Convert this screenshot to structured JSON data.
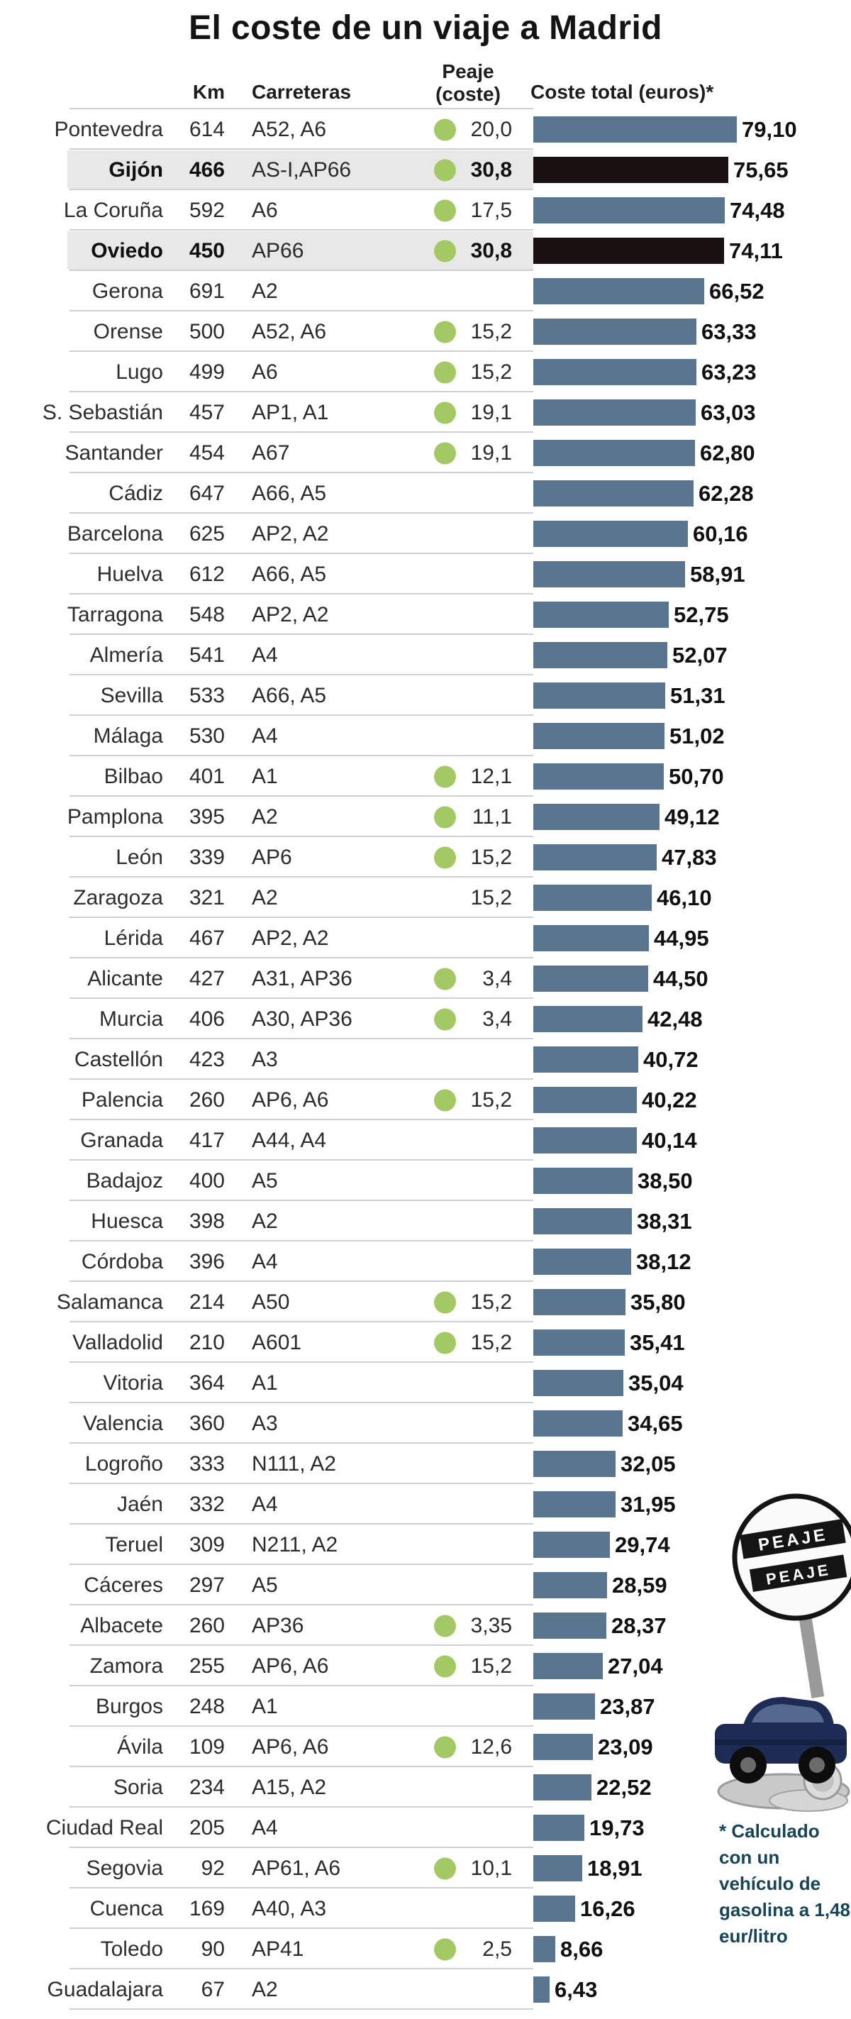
{
  "title": "El coste de un viaje a Madrid",
  "table": {
    "headers": {
      "km": "Km",
      "roads": "Carreteras",
      "toll_line1": "Peaje",
      "toll_line2": "(coste)",
      "total": "Coste total (euros)*"
    }
  },
  "footnote": "* Calculado con un vehículo de gasolina a 1,48 eur/litro",
  "illustration": {
    "sign_label": "PEAJE"
  },
  "colors": {
    "bar": "#5a7590",
    "bar_highlight": "#181110",
    "toll_dot": "#a3c964",
    "highlight_row_bg": "#e8e8e8",
    "separator": "#d0d0d0",
    "footnote_text": "#16455a"
  },
  "chart_data": {
    "type": "bar",
    "orientation": "horizontal",
    "title": "El coste de un viaje a Madrid",
    "value_label": "Coste total (euros)",
    "xlim": [
      0,
      80
    ],
    "rows": [
      {
        "city": "Pontevedra",
        "km": 614,
        "roads": "A52, A6",
        "toll": "20,0",
        "toll_dot": true,
        "total": "79,10",
        "total_value": 79.1,
        "highlight": false
      },
      {
        "city": "Gijón",
        "km": 466,
        "roads": "AS-I,AP66",
        "toll": "30,8",
        "toll_dot": true,
        "total": "75,65",
        "total_value": 75.65,
        "highlight": true
      },
      {
        "city": "La Coruña",
        "km": 592,
        "roads": "A6",
        "toll": "17,5",
        "toll_dot": true,
        "total": "74,48",
        "total_value": 74.48,
        "highlight": false
      },
      {
        "city": "Oviedo",
        "km": 450,
        "roads": "AP66",
        "toll": "30,8",
        "toll_dot": true,
        "total": "74,11",
        "total_value": 74.11,
        "highlight": true
      },
      {
        "city": "Gerona",
        "km": 691,
        "roads": "A2",
        "toll": "",
        "toll_dot": false,
        "total": "66,52",
        "total_value": 66.52,
        "highlight": false
      },
      {
        "city": "Orense",
        "km": 500,
        "roads": "A52, A6",
        "toll": "15,2",
        "toll_dot": true,
        "total": "63,33",
        "total_value": 63.33,
        "highlight": false
      },
      {
        "city": "Lugo",
        "km": 499,
        "roads": "A6",
        "toll": "15,2",
        "toll_dot": true,
        "total": "63,23",
        "total_value": 63.23,
        "highlight": false
      },
      {
        "city": "S. Sebastián",
        "km": 457,
        "roads": "AP1, A1",
        "toll": "19,1",
        "toll_dot": true,
        "total": "63,03",
        "total_value": 63.03,
        "highlight": false
      },
      {
        "city": "Santander",
        "km": 454,
        "roads": "A67",
        "toll": "19,1",
        "toll_dot": true,
        "total": "62,80",
        "total_value": 62.8,
        "highlight": false
      },
      {
        "city": "Cádiz",
        "km": 647,
        "roads": "A66, A5",
        "toll": "",
        "toll_dot": false,
        "total": "62,28",
        "total_value": 62.28,
        "highlight": false
      },
      {
        "city": "Barcelona",
        "km": 625,
        "roads": "AP2, A2",
        "toll": "",
        "toll_dot": false,
        "total": "60,16",
        "total_value": 60.16,
        "highlight": false
      },
      {
        "city": "Huelva",
        "km": 612,
        "roads": "A66, A5",
        "toll": "",
        "toll_dot": false,
        "total": "58,91",
        "total_value": 58.91,
        "highlight": false
      },
      {
        "city": "Tarragona",
        "km": 548,
        "roads": "AP2, A2",
        "toll": "",
        "toll_dot": false,
        "total": "52,75",
        "total_value": 52.75,
        "highlight": false
      },
      {
        "city": "Almería",
        "km": 541,
        "roads": "A4",
        "toll": "",
        "toll_dot": false,
        "total": "52,07",
        "total_value": 52.07,
        "highlight": false
      },
      {
        "city": "Sevilla",
        "km": 533,
        "roads": "A66, A5",
        "toll": "",
        "toll_dot": false,
        "total": "51,31",
        "total_value": 51.31,
        "highlight": false
      },
      {
        "city": "Málaga",
        "km": 530,
        "roads": "A4",
        "toll": "",
        "toll_dot": false,
        "total": "51,02",
        "total_value": 51.02,
        "highlight": false
      },
      {
        "city": "Bilbao",
        "km": 401,
        "roads": "A1",
        "toll": "12,1",
        "toll_dot": true,
        "total": "50,70",
        "total_value": 50.7,
        "highlight": false
      },
      {
        "city": "Pamplona",
        "km": 395,
        "roads": "A2",
        "toll": "11,1",
        "toll_dot": true,
        "total": "49,12",
        "total_value": 49.12,
        "highlight": false
      },
      {
        "city": "León",
        "km": 339,
        "roads": "AP6",
        "toll": "15,2",
        "toll_dot": true,
        "total": "47,83",
        "total_value": 47.83,
        "highlight": false
      },
      {
        "city": "Zaragoza",
        "km": 321,
        "roads": "A2",
        "toll": "15,2",
        "toll_dot": false,
        "total": "46,10",
        "total_value": 46.1,
        "highlight": false
      },
      {
        "city": "Lérida",
        "km": 467,
        "roads": "AP2, A2",
        "toll": "",
        "toll_dot": false,
        "total": "44,95",
        "total_value": 44.95,
        "highlight": false
      },
      {
        "city": "Alicante",
        "km": 427,
        "roads": "A31, AP36",
        "toll": "3,4",
        "toll_dot": true,
        "total": "44,50",
        "total_value": 44.5,
        "highlight": false
      },
      {
        "city": "Murcia",
        "km": 406,
        "roads": "A30, AP36",
        "toll": "3,4",
        "toll_dot": true,
        "total": "42,48",
        "total_value": 42.48,
        "highlight": false
      },
      {
        "city": "Castellón",
        "km": 423,
        "roads": "A3",
        "toll": "",
        "toll_dot": false,
        "total": "40,72",
        "total_value": 40.72,
        "highlight": false
      },
      {
        "city": "Palencia",
        "km": 260,
        "roads": "AP6, A6",
        "toll": "15,2",
        "toll_dot": true,
        "total": "40,22",
        "total_value": 40.22,
        "highlight": false
      },
      {
        "city": "Granada",
        "km": 417,
        "roads": "A44, A4",
        "toll": "",
        "toll_dot": false,
        "total": "40,14",
        "total_value": 40.14,
        "highlight": false
      },
      {
        "city": "Badajoz",
        "km": 400,
        "roads": "A5",
        "toll": "",
        "toll_dot": false,
        "total": "38,50",
        "total_value": 38.5,
        "highlight": false
      },
      {
        "city": "Huesca",
        "km": 398,
        "roads": "A2",
        "toll": "",
        "toll_dot": false,
        "total": "38,31",
        "total_value": 38.31,
        "highlight": false
      },
      {
        "city": "Córdoba",
        "km": 396,
        "roads": "A4",
        "toll": "",
        "toll_dot": false,
        "total": "38,12",
        "total_value": 38.12,
        "highlight": false
      },
      {
        "city": "Salamanca",
        "km": 214,
        "roads": "A50",
        "toll": "15,2",
        "toll_dot": true,
        "total": "35,80",
        "total_value": 35.8,
        "highlight": false
      },
      {
        "city": "Valladolid",
        "km": 210,
        "roads": "A601",
        "toll": "15,2",
        "toll_dot": true,
        "total": "35,41",
        "total_value": 35.41,
        "highlight": false
      },
      {
        "city": "Vitoria",
        "km": 364,
        "roads": "A1",
        "toll": "",
        "toll_dot": false,
        "total": "35,04",
        "total_value": 35.04,
        "highlight": false
      },
      {
        "city": "Valencia",
        "km": 360,
        "roads": "A3",
        "toll": "",
        "toll_dot": false,
        "total": "34,65",
        "total_value": 34.65,
        "highlight": false
      },
      {
        "city": "Logroño",
        "km": 333,
        "roads": "N111, A2",
        "toll": "",
        "toll_dot": false,
        "total": "32,05",
        "total_value": 32.05,
        "highlight": false
      },
      {
        "city": "Jaén",
        "km": 332,
        "roads": "A4",
        "toll": "",
        "toll_dot": false,
        "total": "31,95",
        "total_value": 31.95,
        "highlight": false
      },
      {
        "city": "Teruel",
        "km": 309,
        "roads": "N211, A2",
        "toll": "",
        "toll_dot": false,
        "total": "29,74",
        "total_value": 29.74,
        "highlight": false
      },
      {
        "city": "Cáceres",
        "km": 297,
        "roads": "A5",
        "toll": "",
        "toll_dot": false,
        "total": "28,59",
        "total_value": 28.59,
        "highlight": false
      },
      {
        "city": "Albacete",
        "km": 260,
        "roads": "AP36",
        "toll": "3,35",
        "toll_dot": true,
        "total": "28,37",
        "total_value": 28.37,
        "highlight": false
      },
      {
        "city": "Zamora",
        "km": 255,
        "roads": "AP6, A6",
        "toll": "15,2",
        "toll_dot": true,
        "total": "27,04",
        "total_value": 27.04,
        "highlight": false
      },
      {
        "city": "Burgos",
        "km": 248,
        "roads": "A1",
        "toll": "",
        "toll_dot": false,
        "total": "23,87",
        "total_value": 23.87,
        "highlight": false
      },
      {
        "city": "Ávila",
        "km": 109,
        "roads": "AP6, A6",
        "toll": "12,6",
        "toll_dot": true,
        "total": "23,09",
        "total_value": 23.09,
        "highlight": false
      },
      {
        "city": "Soria",
        "km": 234,
        "roads": "A15, A2",
        "toll": "",
        "toll_dot": false,
        "total": "22,52",
        "total_value": 22.52,
        "highlight": false
      },
      {
        "city": "Ciudad Real",
        "km": 205,
        "roads": "A4",
        "toll": "",
        "toll_dot": false,
        "total": "19,73",
        "total_value": 19.73,
        "highlight": false
      },
      {
        "city": "Segovia",
        "km": 92,
        "roads": "AP61, A6",
        "toll": "10,1",
        "toll_dot": true,
        "total": "18,91",
        "total_value": 18.91,
        "highlight": false
      },
      {
        "city": "Cuenca",
        "km": 169,
        "roads": "A40, A3",
        "toll": "",
        "toll_dot": false,
        "total": "16,26",
        "total_value": 16.26,
        "highlight": false
      },
      {
        "city": "Toledo",
        "km": 90,
        "roads": "AP41",
        "toll": "2,5",
        "toll_dot": true,
        "total": "8,66",
        "total_value": 8.66,
        "highlight": false
      },
      {
        "city": "Guadalajara",
        "km": 67,
        "roads": "A2",
        "toll": "",
        "toll_dot": false,
        "total": "6,43",
        "total_value": 6.43,
        "highlight": false
      }
    ]
  }
}
